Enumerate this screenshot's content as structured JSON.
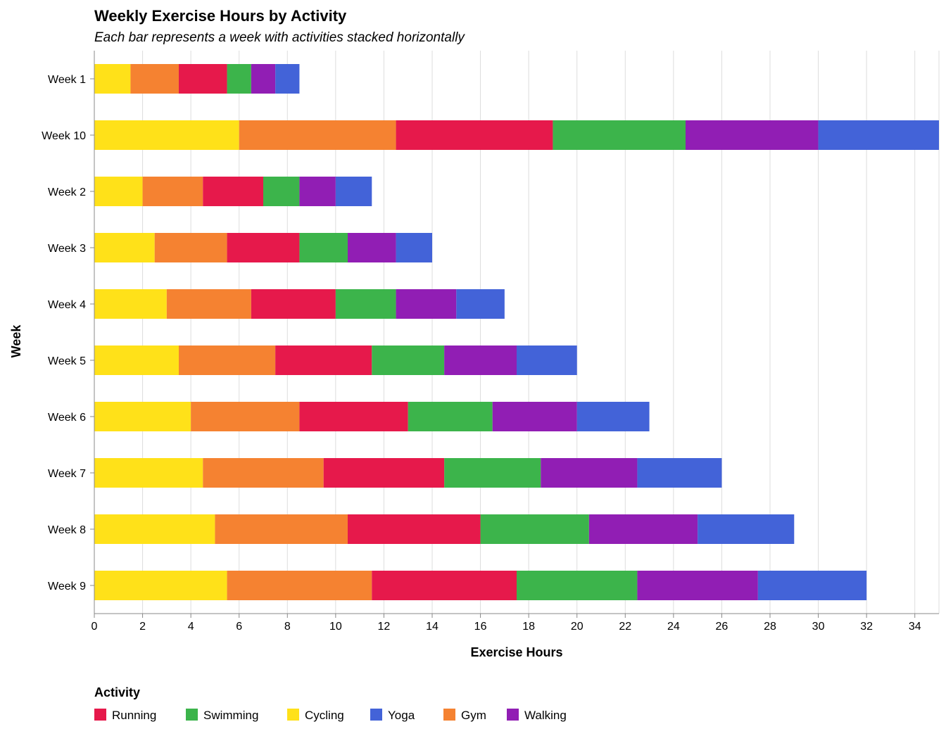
{
  "chart_data": {
    "type": "bar",
    "orientation": "horizontal",
    "stacked": true,
    "title": "Weekly Exercise Hours by Activity",
    "subtitle": "Each bar represents a week with activities stacked horizontally",
    "xlabel": "Exercise Hours",
    "ylabel": "Week",
    "xlim": [
      0,
      35
    ],
    "x_ticks": [
      0,
      2,
      4,
      6,
      8,
      10,
      12,
      14,
      16,
      18,
      20,
      22,
      24,
      26,
      28,
      30,
      32,
      34
    ],
    "grid": "vertical",
    "categories": [
      "Week 1",
      "Week 10",
      "Week 2",
      "Week 3",
      "Week 4",
      "Week 5",
      "Week 6",
      "Week 7",
      "Week 8",
      "Week 9"
    ],
    "stack_order": [
      "Cycling",
      "Gym",
      "Running",
      "Swimming",
      "Walking",
      "Yoga"
    ],
    "series": [
      {
        "name": "Running",
        "color": "#e6194b",
        "values": [
          2,
          6.5,
          2.5,
          3,
          3.5,
          4,
          4.5,
          5,
          5.5,
          6
        ]
      },
      {
        "name": "Swimming",
        "color": "#3cb44b",
        "values": [
          1,
          5.5,
          1.5,
          2,
          2.5,
          3,
          3.5,
          4,
          4.5,
          5
        ]
      },
      {
        "name": "Cycling",
        "color": "#ffe119",
        "values": [
          1.5,
          6,
          2,
          2.5,
          3,
          3.5,
          4,
          4.5,
          5,
          5.5
        ]
      },
      {
        "name": "Yoga",
        "color": "#4363d8",
        "values": [
          1,
          5,
          1.5,
          1.5,
          2,
          2.5,
          3,
          3.5,
          4,
          4.5
        ]
      },
      {
        "name": "Gym",
        "color": "#f58231",
        "values": [
          2,
          6.5,
          2.5,
          3,
          3.5,
          4,
          4.5,
          5,
          5.5,
          6
        ]
      },
      {
        "name": "Walking",
        "color": "#911eb4",
        "values": [
          1,
          5.5,
          1.5,
          2,
          2.5,
          3,
          3.5,
          4,
          4.5,
          5
        ]
      }
    ],
    "legend": {
      "title": "Activity",
      "placement": "bottom-left",
      "order": [
        "Running",
        "Swimming",
        "Cycling",
        "Yoga",
        "Gym",
        "Walking"
      ]
    }
  }
}
